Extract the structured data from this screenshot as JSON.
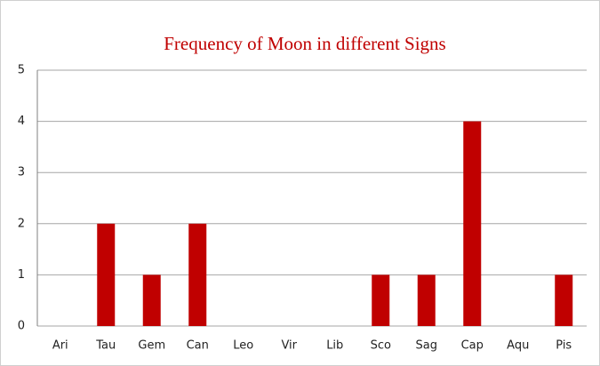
{
  "chart_data": {
    "type": "bar",
    "title": "Frequency of Moon in different Signs",
    "categories": [
      "Ari",
      "Tau",
      "Gem",
      "Can",
      "Leo",
      "Vir",
      "Lib",
      "Sco",
      "Sag",
      "Cap",
      "Aqu",
      "Pis"
    ],
    "values": [
      0,
      2,
      1,
      2,
      0,
      0,
      0,
      1,
      1,
      4,
      0,
      1
    ],
    "color": "#c00000",
    "ylim": [
      0,
      5
    ],
    "yticks": [
      0,
      1,
      2,
      3,
      4,
      5
    ],
    "grid": true
  }
}
